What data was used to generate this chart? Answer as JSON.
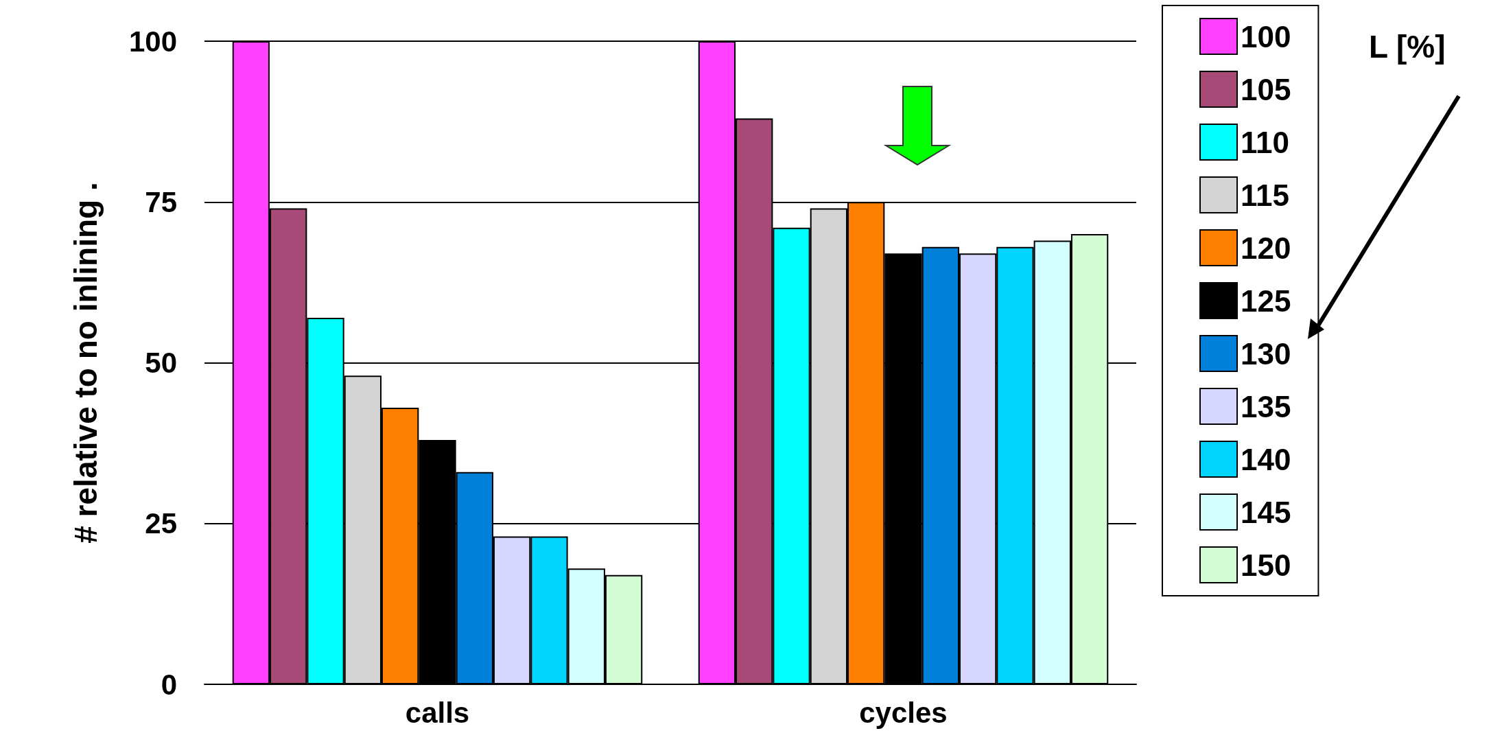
{
  "chart_data": {
    "type": "bar",
    "ylabel": "# relative to no inlining .",
    "legend_title": "L [%]",
    "categories": [
      "calls",
      "cycles"
    ],
    "series": [
      {
        "name": "100",
        "color": "#ff40ff",
        "values": [
          100,
          100
        ]
      },
      {
        "name": "105",
        "color": "#a84a78",
        "values": [
          74,
          88
        ]
      },
      {
        "name": "110",
        "color": "#00ffff",
        "values": [
          57,
          71
        ]
      },
      {
        "name": "115",
        "color": "#d4d4d4",
        "values": [
          48,
          74
        ]
      },
      {
        "name": "120",
        "color": "#ff8000",
        "values": [
          43,
          75
        ]
      },
      {
        "name": "125",
        "color": "#000000",
        "values": [
          38,
          67
        ]
      },
      {
        "name": "130",
        "color": "#0080d8",
        "values": [
          33,
          68
        ]
      },
      {
        "name": "135",
        "color": "#d6d6ff",
        "values": [
          23,
          67
        ]
      },
      {
        "name": "140",
        "color": "#00d4ff",
        "values": [
          23,
          68
        ]
      },
      {
        "name": "145",
        "color": "#d4ffff",
        "values": [
          18,
          69
        ]
      },
      {
        "name": "150",
        "color": "#d4fcd4",
        "values": [
          17,
          70
        ]
      }
    ],
    "ylim": [
      0,
      100
    ],
    "yticks": [
      0,
      25,
      50,
      75,
      100
    ],
    "grid": "y",
    "legend": "right"
  }
}
